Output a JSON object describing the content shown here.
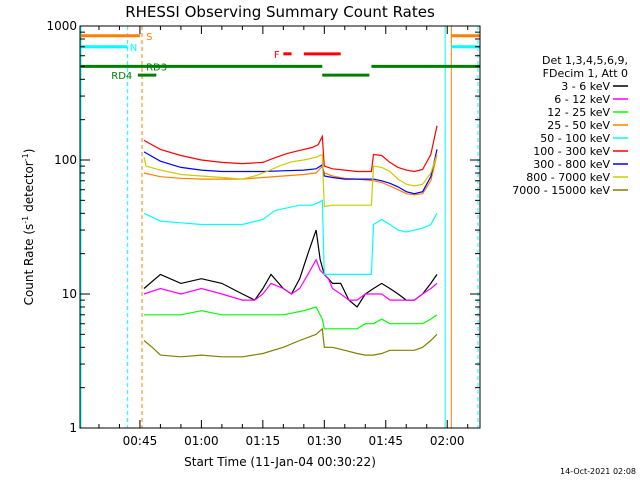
{
  "chart_data": {
    "type": "line",
    "title": "RHESSI Observing Summary Count Rates",
    "xlabel": "Start Time (11-Jan-04 00:30:22)",
    "ylabel_prefix": "Count Rate (s",
    "ylabel_sup": "-1",
    "ylabel_mid": " detector",
    "ylabel_suffix": ")",
    "x_range_minutes": [
      30.37,
      128
    ],
    "yscale": "log",
    "ylim": [
      1,
      1000
    ],
    "x_ticks": [
      {
        "m": 45,
        "label": "00:45"
      },
      {
        "m": 60,
        "label": "01:00"
      },
      {
        "m": 75,
        "label": "01:15"
      },
      {
        "m": 90,
        "label": "01:30"
      },
      {
        "m": 105,
        "label": "01:45"
      },
      {
        "m": 120,
        "label": "02:00"
      }
    ],
    "y_ticks": [
      {
        "v": 1,
        "label": "1"
      },
      {
        "v": 10,
        "label": "10"
      },
      {
        "v": 100,
        "label": "100"
      },
      {
        "v": 1000,
        "label": "1000"
      }
    ],
    "legend_header": [
      "Det 1,3,4,5,6,9,",
      "FDecim 1, Att 0"
    ],
    "series": [
      {
        "name": "3 - 6 keV",
        "color": "#000000",
        "x": [
          46,
          50,
          55,
          60,
          65,
          70,
          73,
          75,
          77,
          80,
          82,
          84,
          86,
          88,
          89,
          90,
          91,
          92,
          94,
          96,
          98,
          100,
          102,
          104,
          106,
          108,
          110,
          112,
          114,
          116,
          117.5
        ],
        "y": [
          11,
          14,
          12,
          13,
          12,
          10,
          9,
          11,
          14,
          11,
          10,
          13,
          20,
          30,
          18,
          14,
          13,
          12,
          12,
          9,
          8,
          10,
          11,
          12,
          11,
          10,
          9,
          9,
          10,
          12,
          14
        ]
      },
      {
        "name": "6 - 12 keV",
        "color": "#ff00ff",
        "x": [
          46,
          50,
          55,
          60,
          65,
          70,
          73,
          75,
          77,
          80,
          82,
          84,
          86,
          88,
          89,
          90,
          91,
          92,
          94,
          96,
          98,
          100,
          102,
          104,
          106,
          108,
          110,
          112,
          114,
          116,
          117.5
        ],
        "y": [
          10,
          11,
          10,
          11,
          10,
          9,
          9,
          10,
          12,
          11,
          10,
          11,
          14,
          18,
          15,
          14,
          13,
          11,
          10,
          9,
          9,
          10,
          10,
          10,
          9,
          9,
          9,
          9,
          10,
          11,
          12
        ]
      },
      {
        "name": "12 - 25 keV",
        "color": "#00ff00",
        "x": [
          46,
          50,
          55,
          60,
          65,
          70,
          75,
          80,
          85,
          88,
          89.5,
          90,
          92,
          95,
          98,
          100,
          102,
          104,
          106,
          108,
          110,
          112,
          114,
          116,
          117.5
        ],
        "y": [
          7,
          7,
          7,
          7.5,
          7,
          7,
          7,
          7,
          7.5,
          8,
          6.5,
          5.5,
          5.5,
          5.5,
          5.5,
          6,
          6,
          6.5,
          6,
          6,
          6,
          6,
          6,
          6.5,
          7
        ]
      },
      {
        "name": "25 - 50 keV",
        "color": "#ff8000",
        "x": [
          46,
          50,
          55,
          60,
          65,
          70,
          75,
          80,
          85,
          88,
          89.5,
          90,
          92,
          95,
          98,
          100,
          102,
          104,
          106,
          108,
          110,
          112,
          114,
          116,
          117.5
        ],
        "y": [
          80,
          75,
          73,
          72,
          72,
          72,
          74,
          76,
          78,
          80,
          90,
          80,
          76,
          73,
          72,
          71,
          70,
          68,
          64,
          60,
          56,
          55,
          56,
          70,
          110
        ]
      },
      {
        "name": "50 - 100 keV",
        "color": "#00ffff",
        "x": [
          46,
          50,
          55,
          60,
          65,
          70,
          75,
          78,
          81,
          84,
          87,
          88.5,
          89.5,
          90,
          92,
          95,
          98,
          100,
          101.5,
          102,
          104,
          106,
          108,
          110,
          112,
          114,
          116,
          117.5
        ],
        "y": [
          40,
          35,
          34,
          33,
          33,
          33,
          36,
          42,
          44,
          46,
          46,
          48,
          50,
          14,
          14,
          14,
          14,
          14,
          14,
          33,
          36,
          33,
          30,
          29,
          30,
          31,
          33,
          40
        ]
      },
      {
        "name": "100 - 300 keV",
        "color": "#ff0000",
        "x": [
          46,
          50,
          55,
          60,
          65,
          70,
          75,
          78,
          81,
          84,
          87,
          88.5,
          89.5,
          90,
          92,
          95,
          98,
          100,
          101.5,
          102,
          104,
          106,
          108,
          110,
          112,
          114,
          116,
          117.5
        ],
        "y": [
          140,
          120,
          108,
          100,
          96,
          94,
          96,
          104,
          112,
          118,
          124,
          130,
          150,
          90,
          86,
          84,
          82,
          82,
          82,
          110,
          108,
          96,
          88,
          84,
          82,
          85,
          110,
          180
        ]
      },
      {
        "name": "300 - 800 keV",
        "color": "#0000ff",
        "x": [
          46,
          50,
          55,
          60,
          65,
          70,
          75,
          80,
          85,
          88,
          89.5,
          90,
          92,
          95,
          98,
          100,
          102,
          104,
          106,
          108,
          110,
          112,
          114,
          116,
          117.5
        ],
        "y": [
          115,
          98,
          88,
          84,
          82,
          82,
          82,
          83,
          84,
          86,
          92,
          76,
          74,
          72,
          72,
          72,
          72,
          70,
          67,
          63,
          58,
          56,
          58,
          75,
          120
        ]
      },
      {
        "name": "800 - 7000 keV",
        "color": "#cccc00",
        "x": [
          46,
          46.5,
          50,
          55,
          60,
          65,
          70,
          73,
          76,
          79,
          82,
          85,
          88,
          89.5,
          90,
          92,
          95,
          98,
          100,
          101.5,
          102,
          104,
          106,
          108,
          110,
          112,
          114,
          116,
          117.5
        ],
        "y": [
          105,
          90,
          84,
          78,
          76,
          74,
          72,
          76,
          82,
          90,
          97,
          100,
          105,
          110,
          45,
          46,
          46,
          46,
          46,
          46,
          90,
          88,
          82,
          72,
          66,
          64,
          66,
          80,
          110
        ]
      },
      {
        "name": "7000 - 15000 keV",
        "color": "#808000",
        "x": [
          46,
          48,
          50,
          55,
          60,
          65,
          70,
          75,
          80,
          84,
          88,
          89.5,
          90,
          92,
          95,
          98,
          100,
          102,
          104,
          106,
          108,
          110,
          112,
          114,
          116,
          117.5
        ],
        "y": [
          4.5,
          4,
          3.5,
          3.4,
          3.5,
          3.4,
          3.4,
          3.6,
          4,
          4.5,
          5,
          5.5,
          4,
          4,
          3.8,
          3.6,
          3.5,
          3.5,
          3.6,
          3.8,
          3.8,
          3.8,
          3.8,
          4,
          4.5,
          5
        ]
      }
    ],
    "flags": [
      {
        "label": "S",
        "color": "#ff8000",
        "label_m": 46.5,
        "y": 845,
        "segments": [
          [
            30.6,
            45
          ],
          [
            121,
            128
          ]
        ]
      },
      {
        "label": "N",
        "color": "#00ffff",
        "label_m": 42.5,
        "y": 700,
        "segments": [
          [
            30.6,
            42
          ],
          [
            121,
            128
          ]
        ]
      },
      {
        "label": "RD3",
        "color": "#008000",
        "label_m": 46.5,
        "y": 500,
        "segments": [
          [
            30.6,
            89.5
          ],
          [
            101.5,
            128
          ]
        ]
      },
      {
        "label": "RD4",
        "color": "#008000",
        "label_m": 38,
        "y": 430,
        "segments": [
          [
            44.5,
            49
          ],
          [
            89.5,
            101
          ]
        ]
      },
      {
        "label": "F",
        "color": "#ff0000",
        "label_m": 77.7,
        "y": 620,
        "segments": [
          [
            80,
            82
          ],
          [
            85,
            94
          ]
        ]
      }
    ],
    "vlines": [
      {
        "m": 30.6,
        "color": "#00ffff",
        "dash": false
      },
      {
        "m": 42,
        "color": "#00ffff",
        "dash": true
      },
      {
        "m": 45.5,
        "color": "#ff8000",
        "dash": true
      },
      {
        "m": 119.5,
        "color": "#00ffff",
        "dash": false
      },
      {
        "m": 121,
        "color": "#ff8000",
        "dash": false
      },
      {
        "m": 127.5,
        "color": "#00ffff",
        "dash": true
      }
    ],
    "grid": false,
    "legend_position": "right"
  },
  "footer": {
    "timestamp": "14-Oct-2021 02:08"
  }
}
